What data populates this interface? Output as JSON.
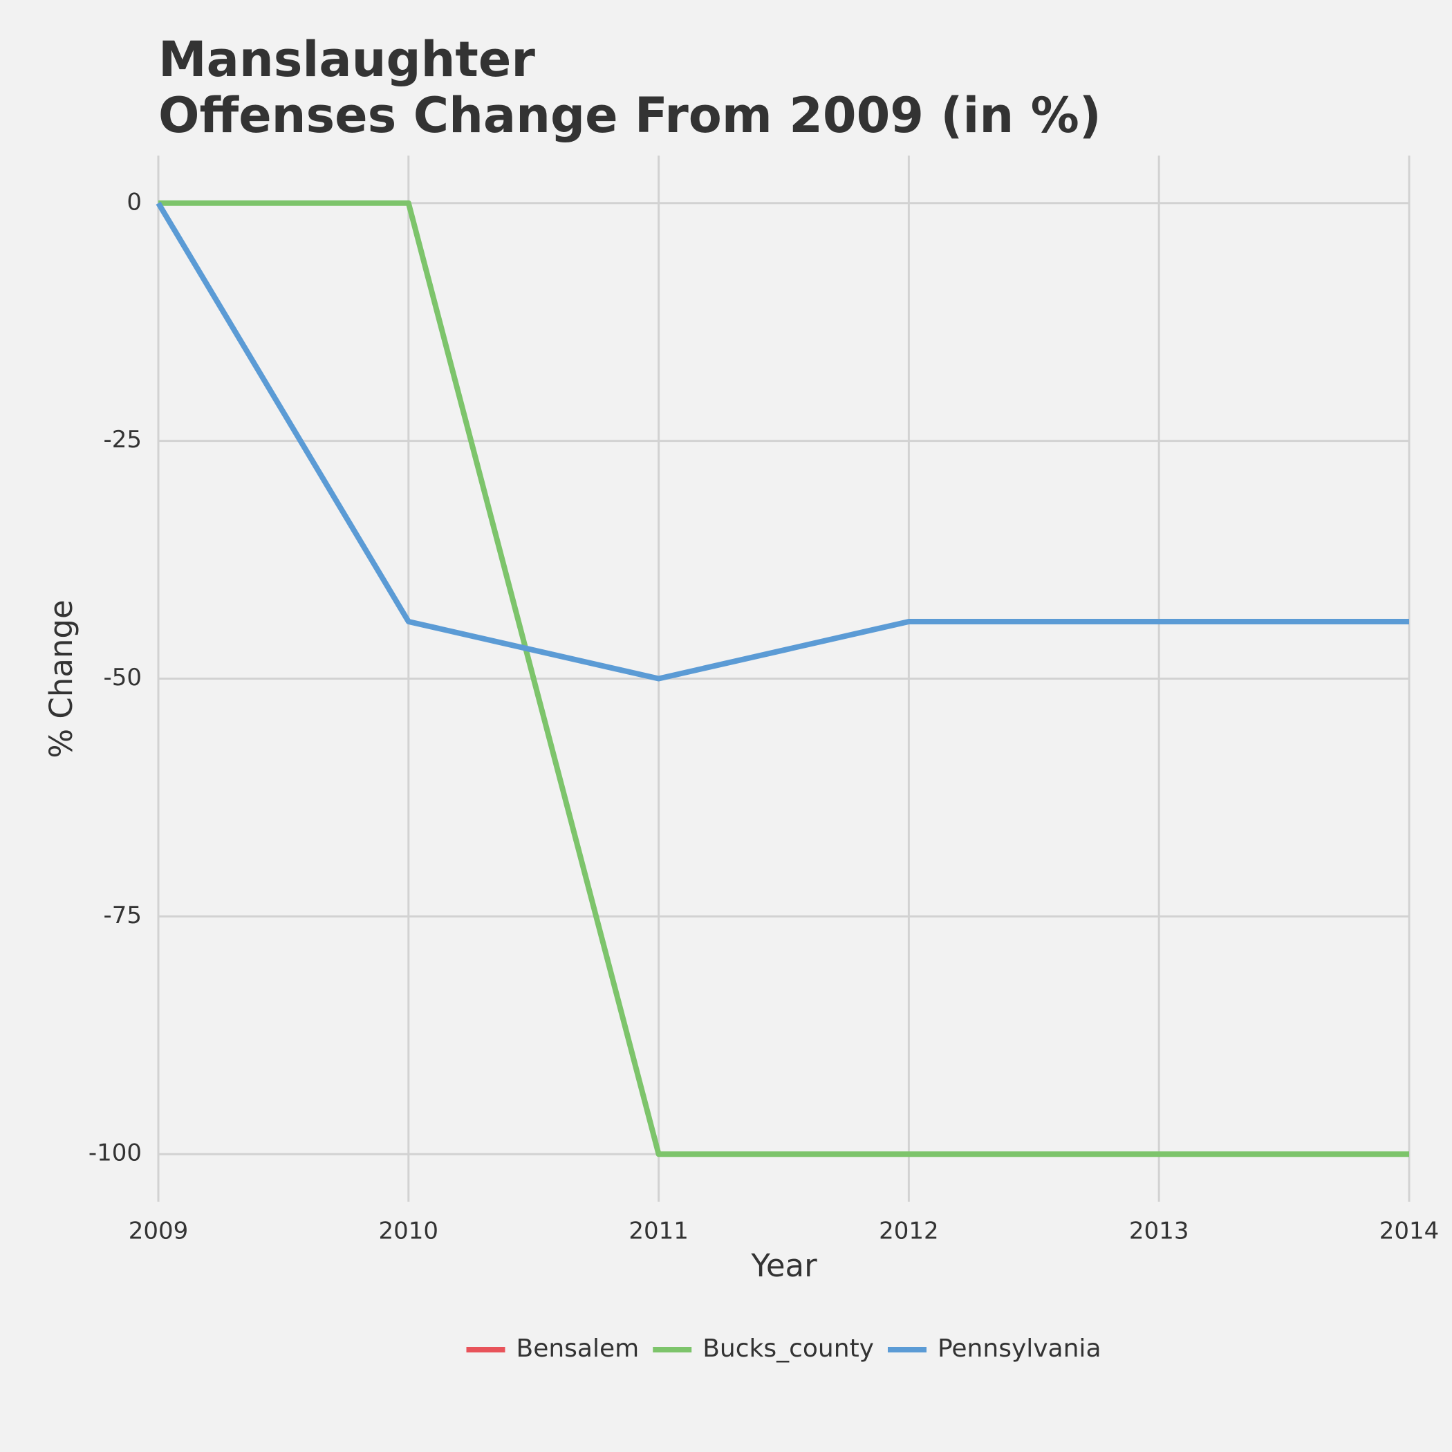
{
  "chart_data": {
    "type": "line",
    "title": "Manslaughter",
    "subtitle": "Offenses Change From 2009 (in %)",
    "x_label": "Year",
    "y_label": "% Change",
    "x": [
      2009,
      2010,
      2011,
      2012,
      2013,
      2014
    ],
    "series": [
      {
        "name": "Bensalem",
        "color": "#e8535a",
        "values": [
          null,
          null,
          null,
          null,
          null,
          null
        ]
      },
      {
        "name": "Bucks_county",
        "color": "#7dc46b",
        "values": [
          0,
          0,
          -100,
          -100,
          -100,
          -100
        ]
      },
      {
        "name": "Pennsylvania",
        "color": "#5b9bd5",
        "values": [
          0,
          -44,
          -50,
          -44,
          -44,
          -44
        ]
      }
    ],
    "xlim": [
      2009,
      2014
    ],
    "xticks": [
      2009,
      2010,
      2011,
      2012,
      2013,
      2014
    ],
    "ylim": [
      -105,
      5
    ],
    "yticks": [
      0,
      -25,
      -50,
      -75,
      -100
    ],
    "grid": true,
    "legend": "bottom"
  }
}
